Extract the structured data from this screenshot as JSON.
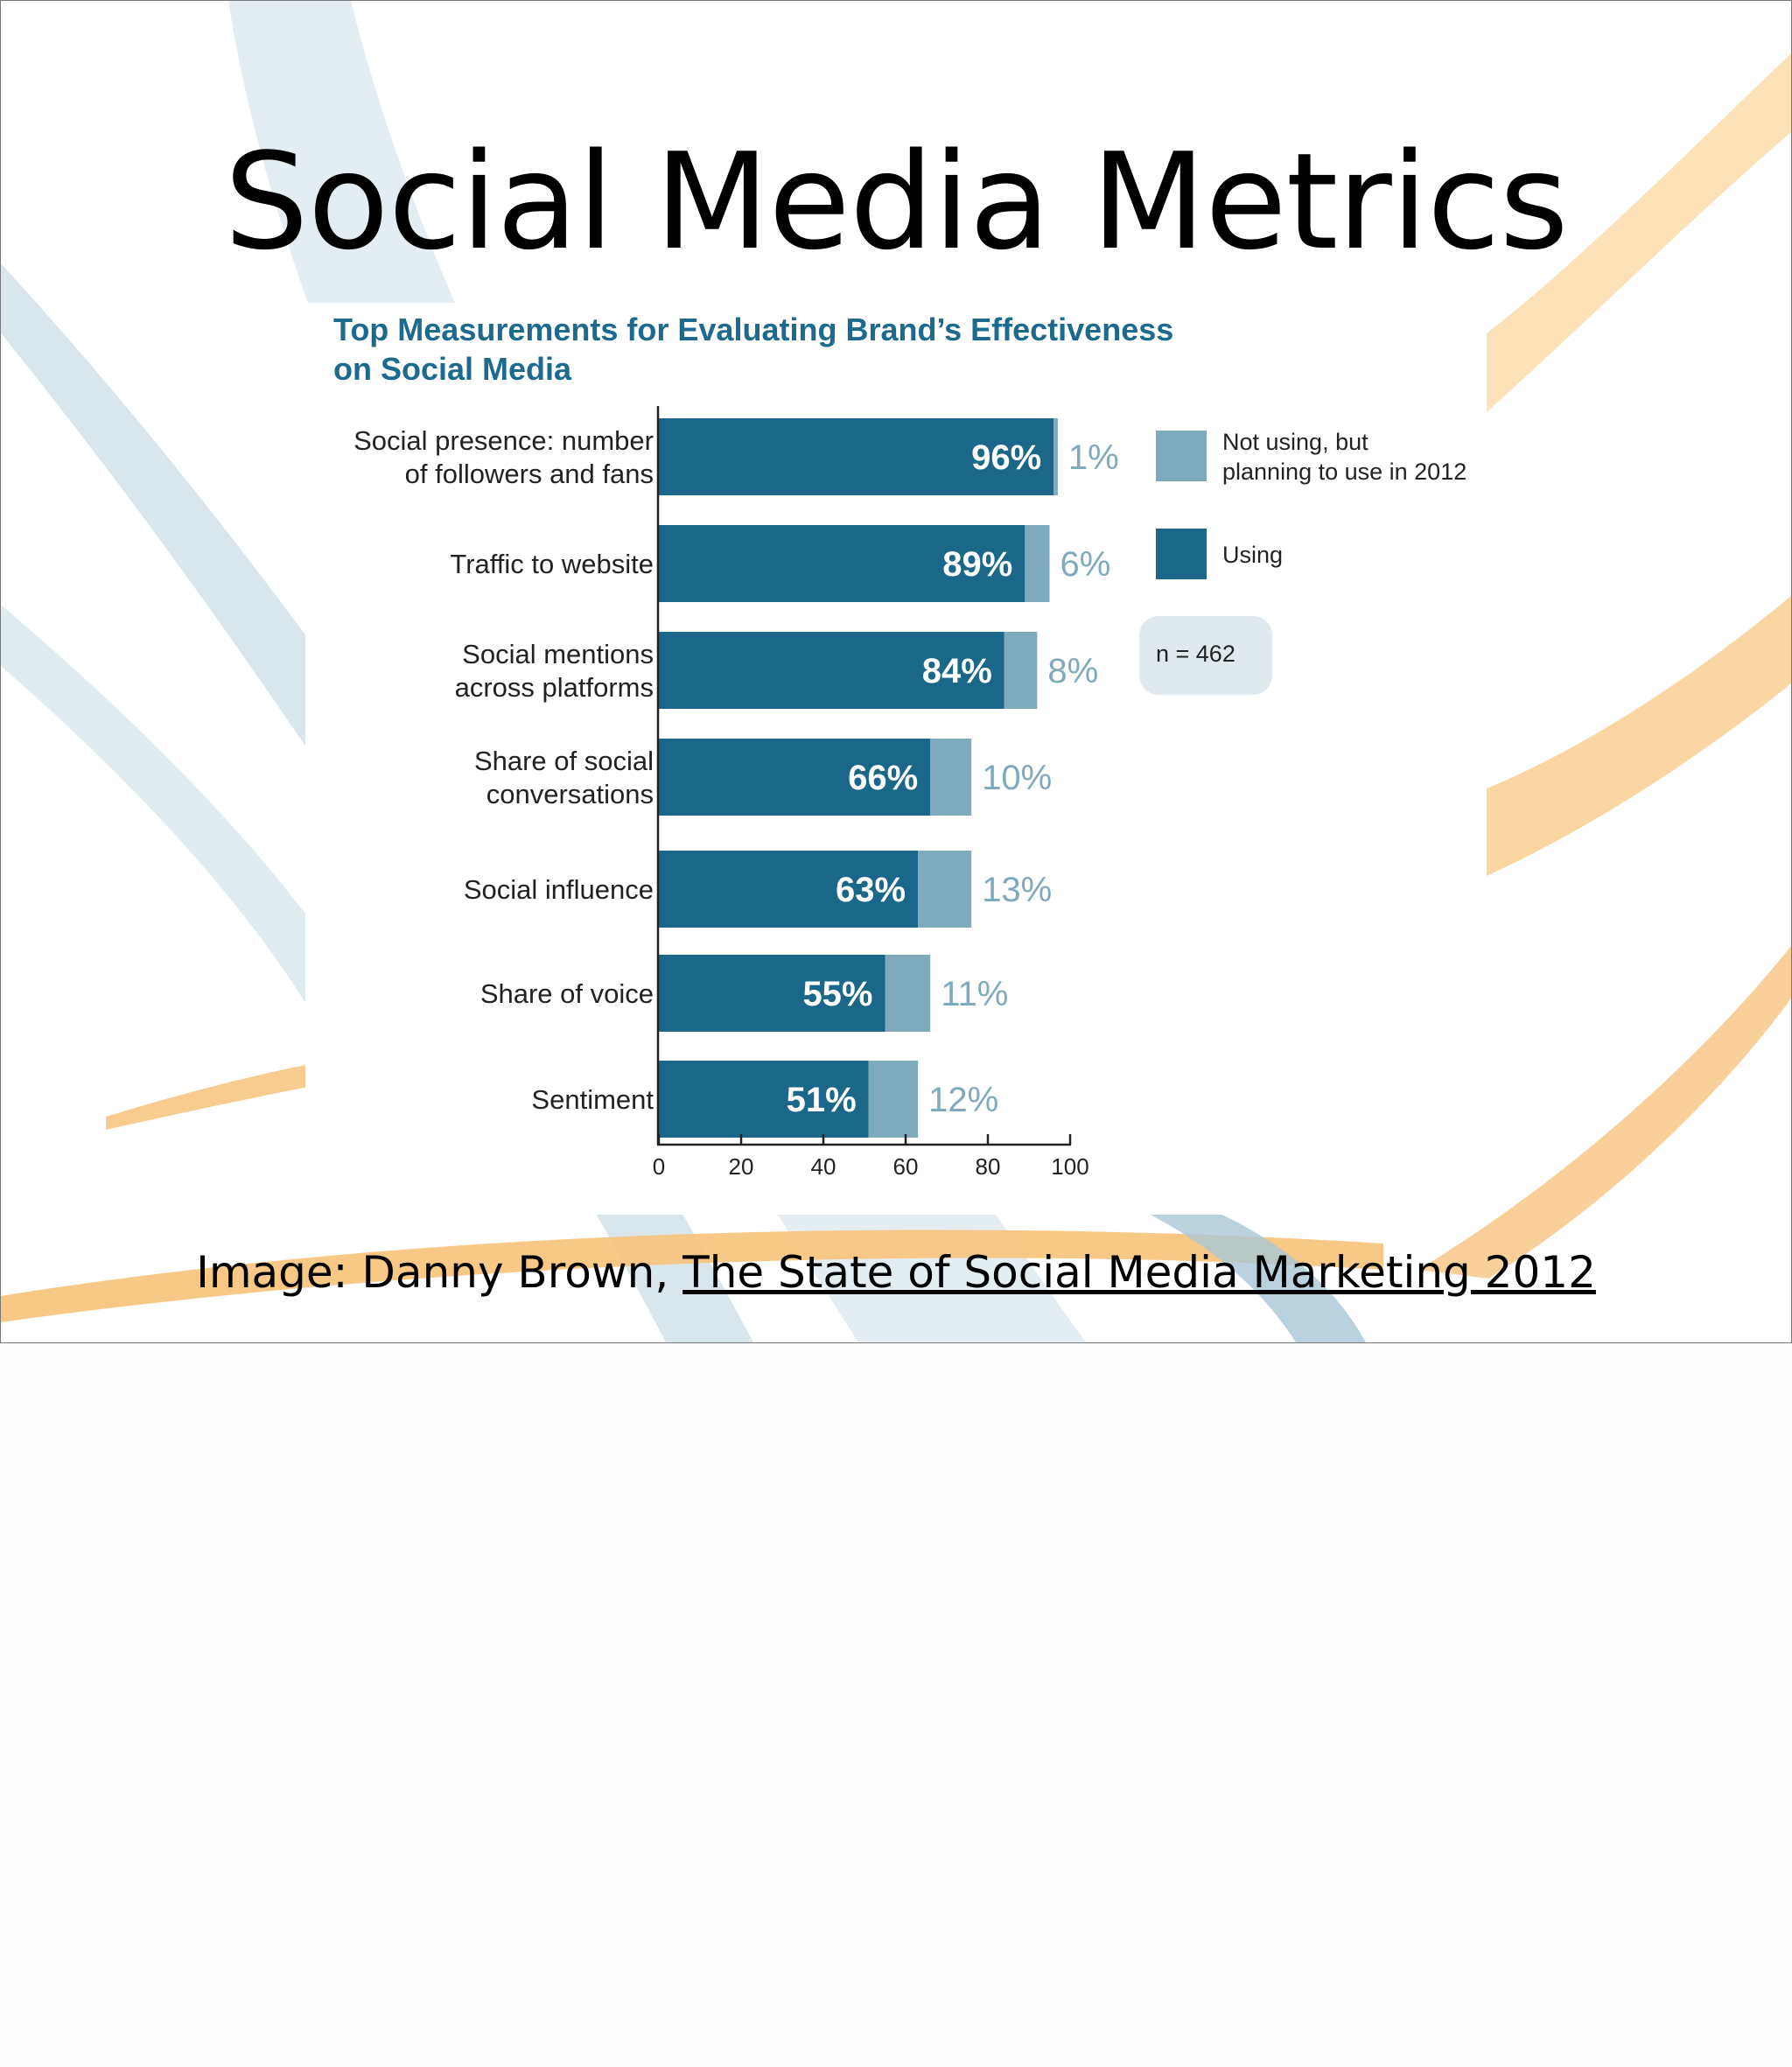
{
  "slide": {
    "title": "Social Media Metrics",
    "caption_prefix": "Image: Danny Brown, ",
    "caption_link": "The State of Social Media Marketing 2012"
  },
  "colors": {
    "using": "#1a6789",
    "planning": "#7fa9bc",
    "label_light": "#7fa9bc",
    "chart_title": "#1d6a8f",
    "note_bg": "#dfe9ee",
    "swoosh_blue": "#cfe0e8",
    "swoosh_orange": "#f7c27a"
  },
  "chart_data": {
    "type": "bar",
    "orientation": "horizontal",
    "stacked": true,
    "title_lines": [
      "Top Measurements for Evaluating Brand’s Effectiveness",
      "on Social Media"
    ],
    "categories": [
      [
        "Social presence: number",
        "of followers and fans"
      ],
      [
        "Traffic to website"
      ],
      [
        "Social mentions",
        "across platforms"
      ],
      [
        "Share of social",
        "conversations"
      ],
      [
        "Social influence"
      ],
      [
        "Share of voice"
      ],
      [
        "Sentiment"
      ]
    ],
    "series": [
      {
        "name": "Using",
        "values": [
          96,
          89,
          84,
          66,
          63,
          55,
          51
        ],
        "color": "#1a6789"
      },
      {
        "name": "Not using, but planning to use in 2012",
        "values": [
          1,
          6,
          8,
          10,
          13,
          11,
          12
        ],
        "color": "#7fa9bc"
      }
    ],
    "legend": {
      "entries": [
        {
          "lines": [
            "Not using, but",
            "planning to use in 2012"
          ],
          "color": "#7fa9bc"
        },
        {
          "lines": [
            "Using"
          ],
          "color": "#1a6789"
        }
      ],
      "placement": "right"
    },
    "annotation": "n = 462",
    "xlim": [
      0,
      100
    ],
    "xticks": [
      0,
      20,
      40,
      60,
      80,
      100
    ],
    "grid": false,
    "value_suffix": "%"
  }
}
